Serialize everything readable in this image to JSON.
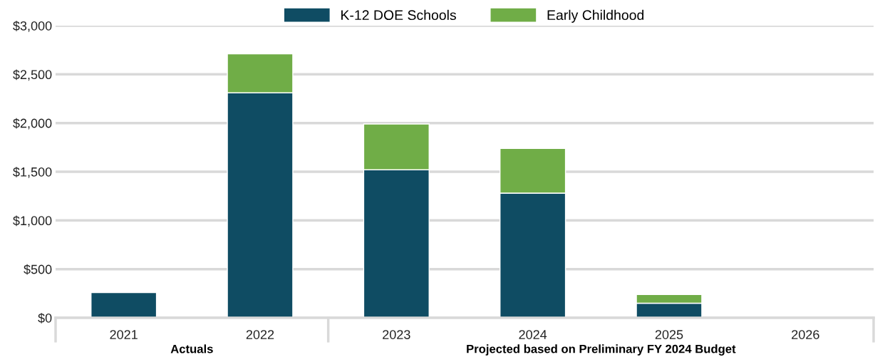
{
  "chart_data": {
    "type": "bar",
    "stacked": true,
    "categories": [
      "2021",
      "2022",
      "2023",
      "2024",
      "2025",
      "2026"
    ],
    "series": [
      {
        "name": "K-12 DOE Schools",
        "color": "#0f4c63",
        "values": [
          260,
          2310,
          1520,
          1280,
          150,
          null
        ]
      },
      {
        "name": "Early Childhood",
        "color": "#70ad47",
        "values": [
          0,
          400,
          470,
          460,
          90,
          null
        ]
      }
    ],
    "ylim": [
      0,
      3000
    ],
    "yticks": [
      {
        "value": 0,
        "label": "$0"
      },
      {
        "value": 500,
        "label": "$500"
      },
      {
        "value": 1000,
        "label": "$1,000"
      },
      {
        "value": 1500,
        "label": "$1,500"
      },
      {
        "value": 2000,
        "label": "$2,000"
      },
      {
        "value": 2500,
        "label": "$2,500"
      },
      {
        "value": 3000,
        "label": "$3,000"
      }
    ],
    "grid": "y",
    "legend": "top",
    "annotations": [
      "Actuals",
      "Projected based on Preliminary FY 2024 Budget"
    ]
  }
}
